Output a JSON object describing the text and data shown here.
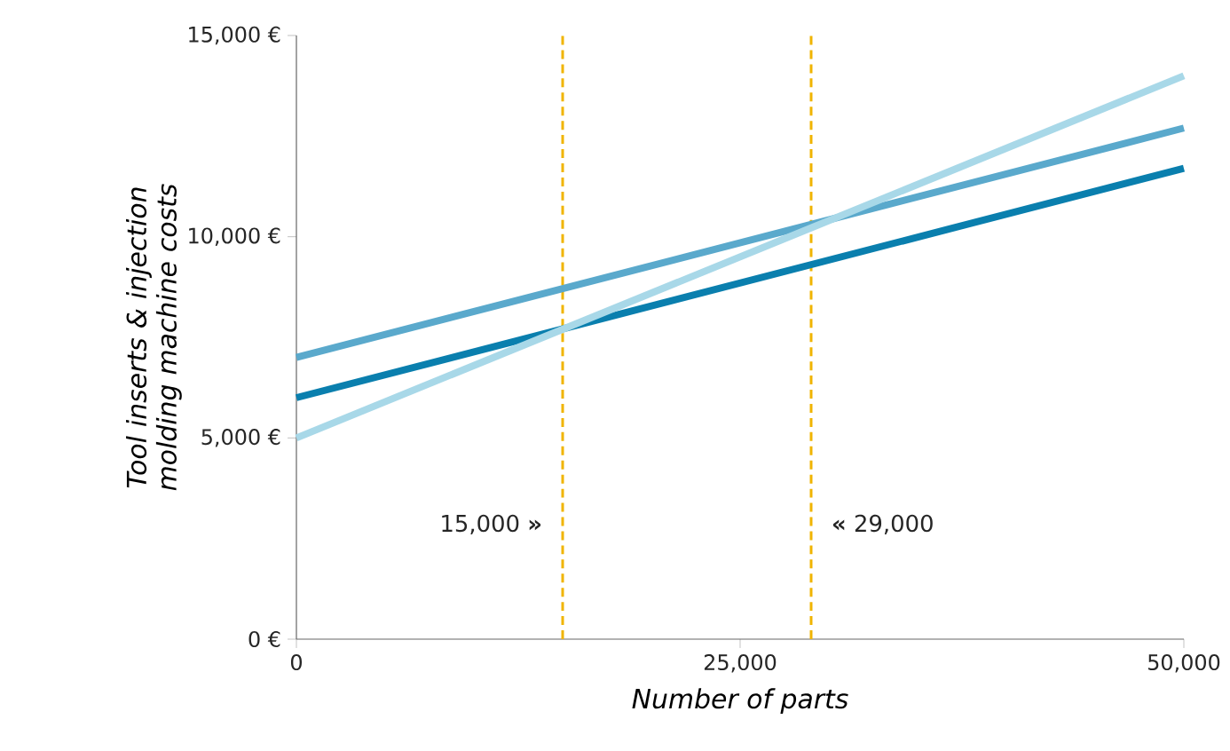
{
  "chart_data": {
    "type": "line",
    "xlabel": "Number of parts",
    "ylabel": "Tool inserts & injection molding machine costs",
    "x": [
      0,
      50000
    ],
    "series": [
      {
        "color": "#5aa9cc",
        "values": [
          7000,
          12700
        ]
      },
      {
        "color": "#0a7fae",
        "values": [
          6000,
          11700
        ]
      },
      {
        "color": "#a8d8e8",
        "values": [
          5000,
          14000
        ]
      }
    ],
    "xlim": [
      0,
      50000
    ],
    "ylim": [
      0,
      15000
    ],
    "xticks": [
      {
        "value": 0,
        "label": "0"
      },
      {
        "value": 25000,
        "label": "25,000"
      },
      {
        "value": 50000,
        "label": "50,000"
      }
    ],
    "yticks": [
      {
        "value": 0,
        "label": "0 €"
      },
      {
        "value": 5000,
        "label": "5,000 €"
      },
      {
        "value": 10000,
        "label": "10,000 €"
      },
      {
        "value": 15000,
        "label": "15,000 €"
      }
    ],
    "ref_lines": [
      {
        "axis": "x",
        "value": 15000,
        "label": "15,000 **»**",
        "color": "#f0b400",
        "line_style": "dashed"
      },
      {
        "axis": "x",
        "value": 29000,
        "label": "**«** 29,000",
        "color": "#f0b400",
        "line_style": "dashed"
      }
    ],
    "grid": false,
    "marker": "none",
    "line_style": "solid"
  }
}
